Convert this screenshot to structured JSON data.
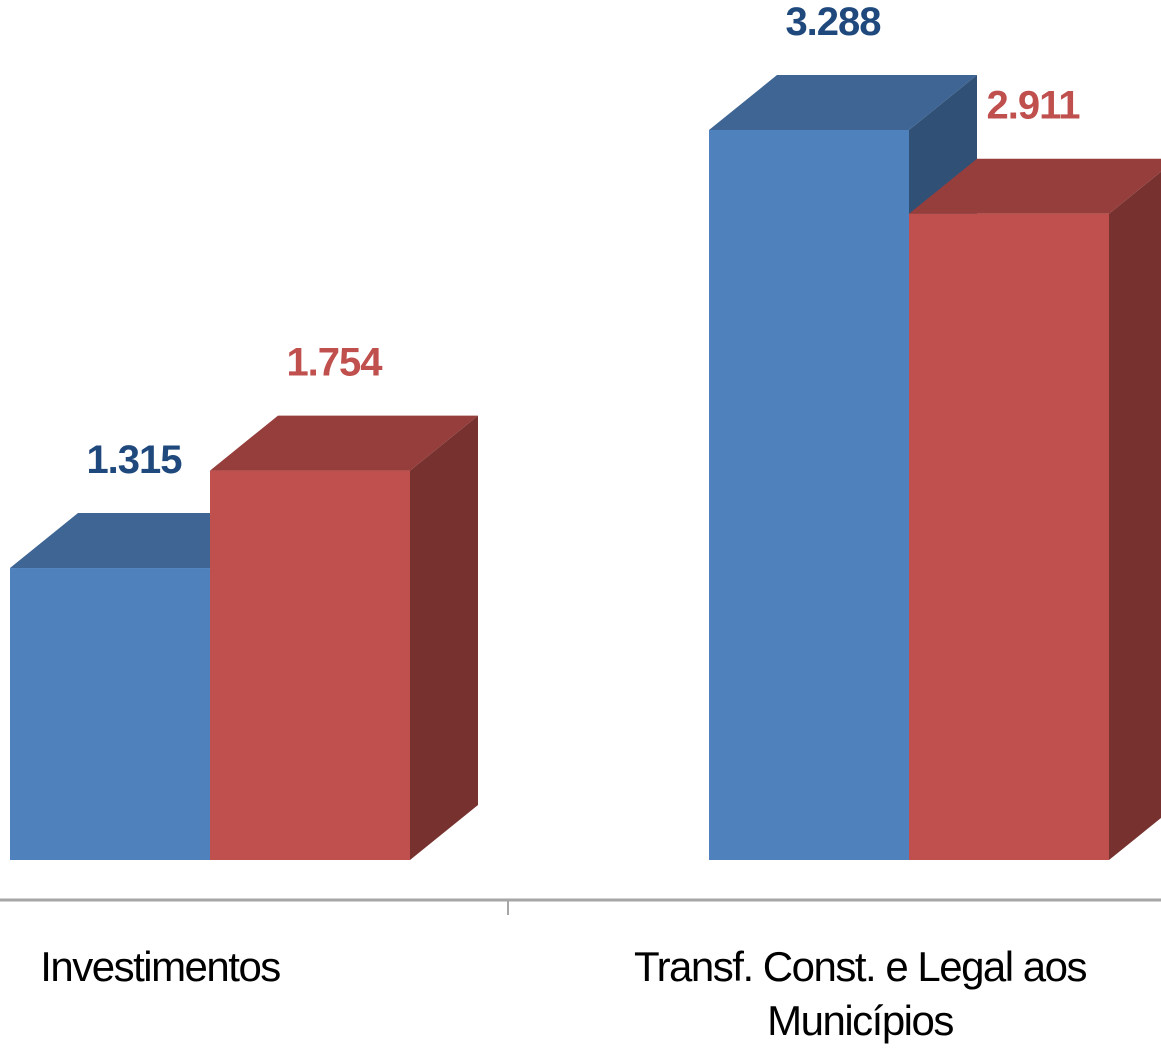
{
  "chart_data": {
    "type": "bar3d",
    "categories": [
      "Investimentos",
      "Transf. Const. e Legal aos Municípios"
    ],
    "series": [
      {
        "color": "#4f81bd",
        "label_color": "#1f497d",
        "values": [
          1315,
          3288
        ],
        "value_labels": [
          "1.315",
          "3.288"
        ]
      },
      {
        "color": "#c0504d",
        "label_color": "#c0504d",
        "values": [
          1754,
          2911
        ],
        "value_labels": [
          "1.754",
          "2.911"
        ]
      }
    ]
  }
}
